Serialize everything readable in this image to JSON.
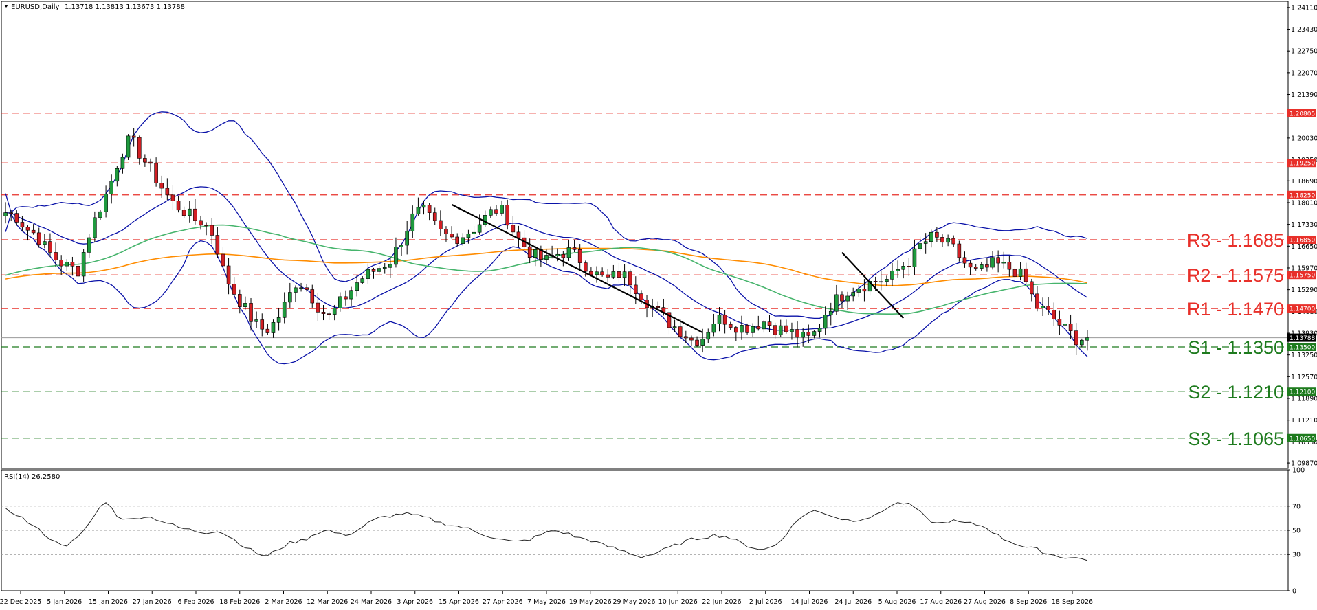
{
  "header": {
    "symbol": "EURUSD,Daily",
    "ohlc": "1.13718 1.13813 1.13673 1.13788"
  },
  "rsi_header": "RSI(14) 26.2580",
  "colors": {
    "resistance": "#e8302a",
    "support": "#1e7b1e",
    "bull_candle": "#1f9a3e",
    "bear_candle": "#d21f24",
    "bollinger": "#0a12a8",
    "ma_fast": "#46b46c",
    "ma_slow": "#ff8c00",
    "trendline": "#000000",
    "rsi_line": "#222222"
  },
  "chart_data": [
    {
      "type": "candlestick",
      "title": "EURUSD,Daily",
      "x": [
        "22 Dec 2025",
        "5 Jan 2026",
        "15 Jan 2026",
        "27 Jan 2026",
        "6 Feb 2026",
        "18 Feb 2026",
        "2 Mar 2026",
        "12 Mar 2026",
        "24 Mar 2026",
        "3 Apr 2026",
        "15 Apr 2026",
        "27 Apr 2026",
        "7 May 2026",
        "19 May 2026",
        "29 May 2026",
        "10 Jun 2026",
        "22 Jun 2026",
        "2 Jul 2026",
        "14 Jul 2026",
        "24 Jul 2026",
        "5 Aug 2026",
        "17 Aug 2026",
        "27 Aug 2026",
        "8 Sep 2026",
        "18 Sep 2026"
      ],
      "close_path": [
        1.177,
        1.176,
        1.172,
        1.17,
        1.165,
        1.162,
        1.16,
        1.159,
        1.17,
        1.178,
        1.185,
        1.195,
        1.2,
        1.195,
        1.19,
        1.185,
        1.18,
        1.178,
        1.175,
        1.174,
        1.17,
        1.158,
        1.152,
        1.147,
        1.142,
        1.14,
        1.143,
        1.149,
        1.156,
        1.153,
        1.148,
        1.144,
        1.148,
        1.152,
        1.156,
        1.158,
        1.16,
        1.162,
        1.168,
        1.175,
        1.178,
        1.174,
        1.17,
        1.169,
        1.17,
        1.172,
        1.175,
        1.178,
        1.177,
        1.17,
        1.166,
        1.163,
        1.162,
        1.164,
        1.165,
        1.163,
        1.16,
        1.157,
        1.156,
        1.158,
        1.156,
        1.152,
        1.148,
        1.145,
        1.142,
        1.14,
        1.137,
        1.138,
        1.143,
        1.144,
        1.142,
        1.141,
        1.142,
        1.143,
        1.141,
        1.14,
        1.139,
        1.137,
        1.14,
        1.147,
        1.15,
        1.153,
        1.154,
        1.155,
        1.156,
        1.156,
        1.16,
        1.162,
        1.167,
        1.169,
        1.168,
        1.166,
        1.162,
        1.158,
        1.159,
        1.161,
        1.16,
        1.159,
        1.156,
        1.148,
        1.146,
        1.143,
        1.14,
        1.1375,
        1.1379
      ],
      "last_price": 1.13788,
      "ylim": [
        1.097,
        1.243
      ],
      "y_ticks": [
        1.2411,
        1.2343,
        1.2275,
        1.2207,
        1.2139,
        1.2003,
        1.1935,
        1.1869,
        1.1801,
        1.1733,
        1.1665,
        1.1597,
        1.1529,
        1.1461,
        1.1393,
        1.1325,
        1.1257,
        1.1189,
        1.1121,
        1.1053,
        1.0987
      ],
      "horizontal_levels": [
        {
          "value": 1.20805,
          "tag": "1.20805",
          "kind": "resistance",
          "label": ""
        },
        {
          "value": 1.1925,
          "tag": "1.19250",
          "kind": "resistance",
          "label": ""
        },
        {
          "value": 1.1825,
          "tag": "1.18250",
          "kind": "resistance",
          "label": ""
        },
        {
          "value": 1.1685,
          "tag": "1.16850",
          "kind": "resistance",
          "label": "R3 - 1.1685"
        },
        {
          "value": 1.1575,
          "tag": "1.15750",
          "kind": "resistance",
          "label": "R2 - 1.1575"
        },
        {
          "value": 1.147,
          "tag": "1.14700",
          "kind": "resistance",
          "label": "R1 - 1.1470"
        },
        {
          "value": 1.135,
          "tag": "1.13500",
          "kind": "support",
          "label": "S1 - 1.1350"
        },
        {
          "value": 1.121,
          "tag": "1.12100",
          "kind": "support",
          "label": "S2 - 1.1210"
        },
        {
          "value": 1.1065,
          "tag": "1.10650",
          "kind": "support",
          "label": "S3 - 1.1065"
        }
      ],
      "overlays": [
        "Bollinger Bands",
        "Moving Average (fast)",
        "Moving Average (slow)",
        "Trendlines"
      ]
    },
    {
      "type": "line",
      "title": "RSI(14) 26.2580",
      "ylim": [
        0,
        100
      ],
      "y_ticks": [
        100,
        70,
        50,
        30,
        0
      ],
      "values": [
        67,
        63,
        55,
        48,
        40,
        38,
        45,
        60,
        75,
        62,
        58,
        62,
        60,
        56,
        52,
        50,
        48,
        50,
        45,
        38,
        32,
        28,
        35,
        40,
        42,
        48,
        50,
        46,
        48,
        55,
        60,
        62,
        64,
        62,
        60,
        56,
        54,
        52,
        48,
        45,
        42,
        40,
        42,
        46,
        50,
        48,
        44,
        42,
        38,
        35,
        32,
        28,
        30,
        34,
        38,
        42,
        44,
        46,
        45,
        40,
        36,
        34,
        38,
        50,
        62,
        66,
        64,
        60,
        58,
        60,
        62,
        70,
        73,
        70,
        60,
        55,
        58,
        56,
        55,
        52,
        44,
        40,
        36,
        34,
        30,
        28,
        27,
        26
      ]
    }
  ]
}
